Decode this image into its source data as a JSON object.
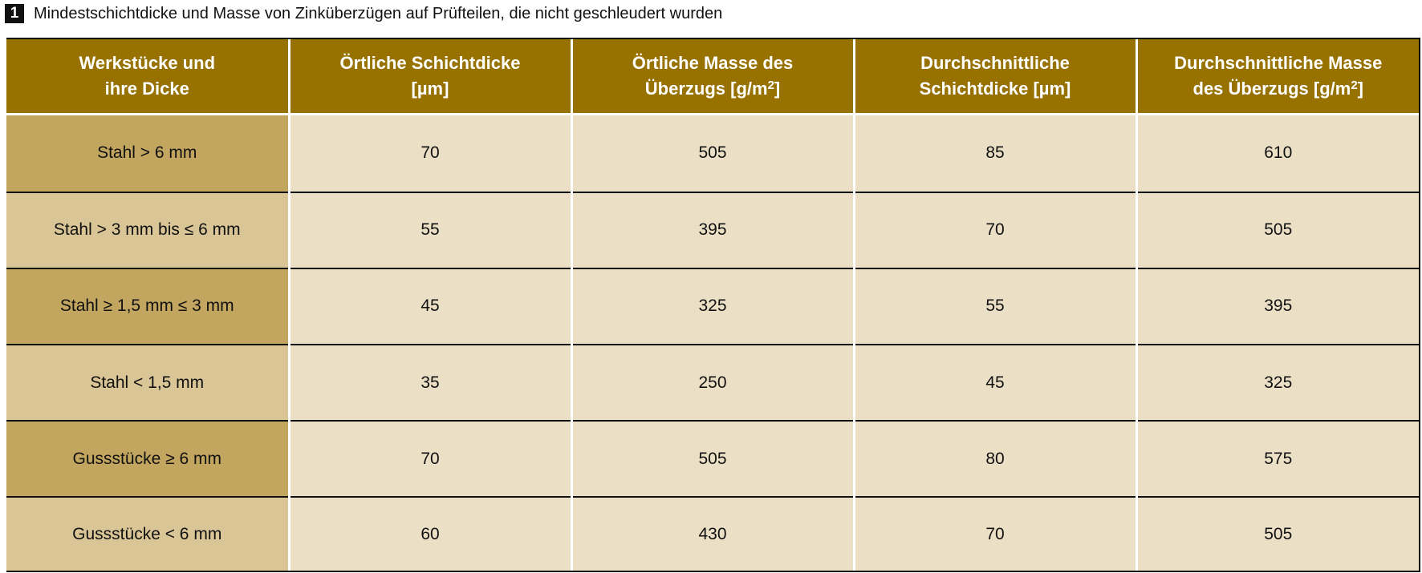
{
  "caption": {
    "number": "1",
    "text": "Mindestschichtdicke und Masse von Zinküberzügen auf Prüfteilen, die nicht geschleudert wurden"
  },
  "colors": {
    "header_bg": "#977201",
    "first_col_dark": "#c2a55f",
    "first_col_light": "#d9c596",
    "cell_bg": "#ebe0c6"
  },
  "table": {
    "headers": [
      {
        "line1": "Werkstücke und",
        "line2": "ihre Dicke",
        "sup": ""
      },
      {
        "line1": "Örtliche Schichtdicke",
        "line2": "[µm]",
        "sup": ""
      },
      {
        "line1": "Örtliche Masse des",
        "line2": "Überzugs [g/m",
        "sup": "2",
        "after": "]"
      },
      {
        "line1": "Durchschnittliche",
        "line2": "Schichtdicke [µm]",
        "sup": ""
      },
      {
        "line1": "Durchschnittliche Masse",
        "line2": "des Überzugs [g/m",
        "sup": "2",
        "after": "]"
      }
    ],
    "rows": [
      [
        "Stahl > 6 mm",
        "70",
        "505",
        "85",
        "610"
      ],
      [
        "Stahl > 3 mm bis ≤ 6 mm",
        "55",
        "395",
        "70",
        "505"
      ],
      [
        "Stahl ≥ 1,5 mm ≤ 3 mm",
        "45",
        "325",
        "55",
        "395"
      ],
      [
        "Stahl < 1,5 mm",
        "35",
        "250",
        "45",
        "325"
      ],
      [
        "Gussstücke ≥ 6 mm",
        "70",
        "505",
        "80",
        "575"
      ],
      [
        "Gussstücke < 6 mm",
        "60",
        "430",
        "70",
        "505"
      ]
    ]
  }
}
